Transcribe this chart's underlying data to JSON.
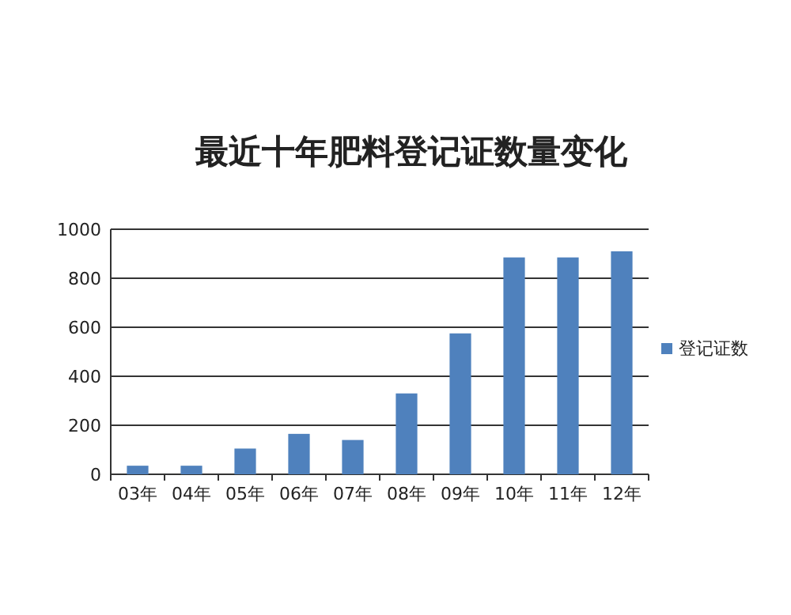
{
  "chart_data": {
    "type": "bar",
    "title": "最近十年肥料登记证数量变化",
    "categories": [
      "03年",
      "04年",
      "05年",
      "06年",
      "07年",
      "08年",
      "09年",
      "10年",
      "11年",
      "12年"
    ],
    "series": [
      {
        "name": "登记证数",
        "color": "#4f81bd",
        "values": [
          35,
          35,
          105,
          165,
          140,
          330,
          575,
          885,
          885,
          910
        ]
      }
    ],
    "ylim": [
      0,
      1000
    ],
    "yticks": [
      0,
      200,
      400,
      600,
      800,
      1000
    ],
    "grid": "y",
    "legend": "right"
  }
}
